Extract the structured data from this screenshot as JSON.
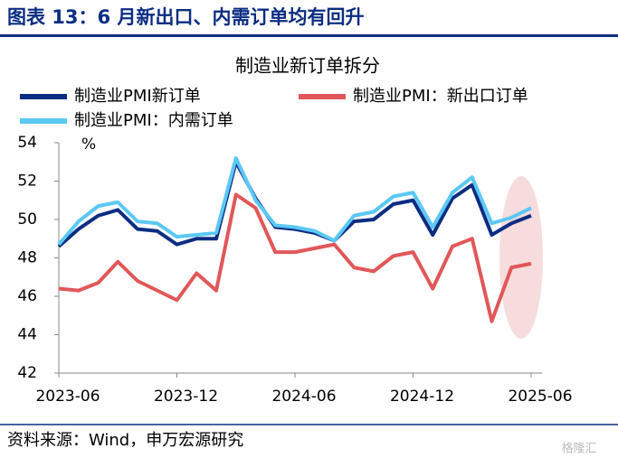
{
  "header": {
    "title": "图表 13：6 月新出口、内需订单均有回升"
  },
  "chart_data": {
    "type": "line",
    "title": "制造业新订单拆分",
    "unit": "%",
    "x": [
      "2023-06",
      "2023-07",
      "2023-08",
      "2023-09",
      "2023-10",
      "2023-11",
      "2023-12",
      "2024-01",
      "2024-02",
      "2024-03",
      "2024-04",
      "2024-05",
      "2024-06",
      "2024-07",
      "2024-08",
      "2024-09",
      "2024-10",
      "2024-11",
      "2024-12",
      "2025-01",
      "2025-02",
      "2025-03",
      "2025-04",
      "2025-05",
      "2025-06"
    ],
    "xticks": [
      "2023-06",
      "2023-12",
      "2024-06",
      "2024-12",
      "2025-06"
    ],
    "series": [
      {
        "name": "制造业PMI新订单",
        "color": "#0c2d83",
        "values": [
          48.6,
          49.5,
          50.2,
          50.5,
          49.5,
          49.4,
          48.7,
          49.0,
          49.0,
          53.0,
          51.1,
          49.6,
          49.5,
          49.3,
          48.9,
          49.9,
          50.0,
          50.8,
          51.0,
          49.2,
          51.1,
          51.8,
          49.2,
          49.8,
          50.2
        ]
      },
      {
        "name": "制造业PMI：新出口订单",
        "color": "#e15759",
        "values": [
          46.4,
          46.3,
          46.7,
          47.8,
          46.8,
          46.3,
          45.8,
          47.2,
          46.3,
          51.3,
          50.6,
          48.3,
          48.3,
          48.5,
          48.7,
          47.5,
          47.3,
          48.1,
          48.3,
          46.4,
          48.6,
          49.0,
          44.7,
          47.5,
          47.7
        ]
      },
      {
        "name": "制造业PMI：内需订单",
        "color": "#5bc8f5",
        "values": [
          48.7,
          49.9,
          50.7,
          50.9,
          49.9,
          49.8,
          49.1,
          49.2,
          49.3,
          53.2,
          51.0,
          49.7,
          49.6,
          49.4,
          48.9,
          50.2,
          50.4,
          51.2,
          51.4,
          49.6,
          51.4,
          52.2,
          49.8,
          50.1,
          50.6
        ]
      }
    ],
    "ylim": [
      42,
      54
    ],
    "yticks": [
      42,
      44,
      46,
      48,
      50,
      52,
      54
    ],
    "grid": false
  },
  "footer": {
    "source": "资料来源：Wind，申万宏源研究",
    "watermark": "格隆汇"
  }
}
